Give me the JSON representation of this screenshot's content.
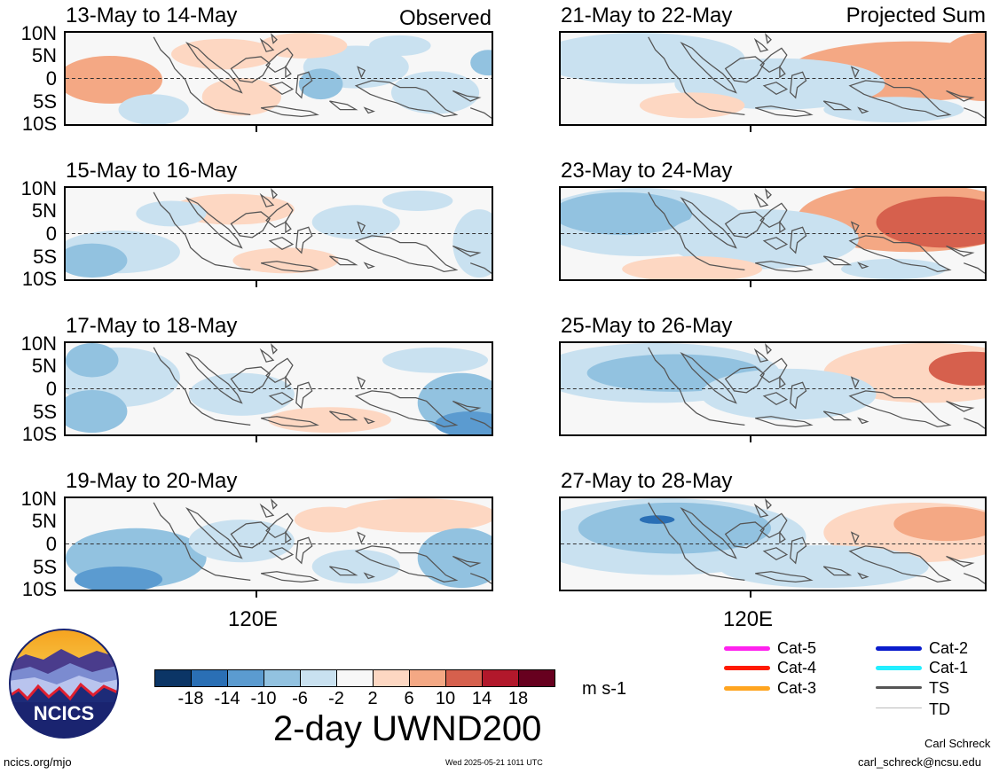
{
  "panels": [
    {
      "title": "13-May to 14-May",
      "tag": "Observed",
      "pattern": "obs1"
    },
    {
      "title": "15-May to 16-May",
      "tag": "",
      "pattern": "obs2"
    },
    {
      "title": "17-May to 18-May",
      "tag": "",
      "pattern": "obs3"
    },
    {
      "title": "19-May to 20-May",
      "tag": "",
      "pattern": "obs4"
    },
    {
      "title": "21-May to 22-May",
      "tag": "Projected Sum",
      "pattern": "proj1"
    },
    {
      "title": "23-May to 24-May",
      "tag": "",
      "pattern": "proj2"
    },
    {
      "title": "25-May to 26-May",
      "tag": "",
      "pattern": "proj3"
    },
    {
      "title": "27-May to 28-May",
      "tag": "",
      "pattern": "proj4"
    }
  ],
  "lat_labels": [
    "10N",
    "5N",
    "0",
    "5S",
    "10S"
  ],
  "lon_label": "120E",
  "colorbar": {
    "colors": [
      "#0b3566",
      "#2a6fb5",
      "#5b9bd0",
      "#92c2e0",
      "#c9e1f0",
      "#f7f7f7",
      "#fdd7c2",
      "#f4a884",
      "#d6604d",
      "#b2182b",
      "#67001f"
    ],
    "labels": [
      "-18",
      "-14",
      "-10",
      "-6",
      "-2",
      "2",
      "6",
      "10",
      "14",
      "18"
    ],
    "units": "m s-1"
  },
  "main_title": "2-day UWND200",
  "legend": [
    {
      "label": "Cat-5",
      "color": "#ff22ee"
    },
    {
      "label": "Cat-4",
      "color": "#ff1a00"
    },
    {
      "label": "Cat-3",
      "color": "#ffa520"
    },
    {
      "label": "Cat-2",
      "color": "#0a1ccc"
    },
    {
      "label": "Cat-1",
      "color": "#22eeff"
    },
    {
      "label": "TS",
      "color": "#555555"
    },
    {
      "label": "TD",
      "color": "#bbbbbb"
    }
  ],
  "logo_text": "NCICS",
  "footer": {
    "url": "ncics.org/mjo",
    "timestamp": "Wed 2025-05-21 1011 UTC",
    "author": "Carl Schreck",
    "email": "carl_schreck@ncsu.edu"
  }
}
